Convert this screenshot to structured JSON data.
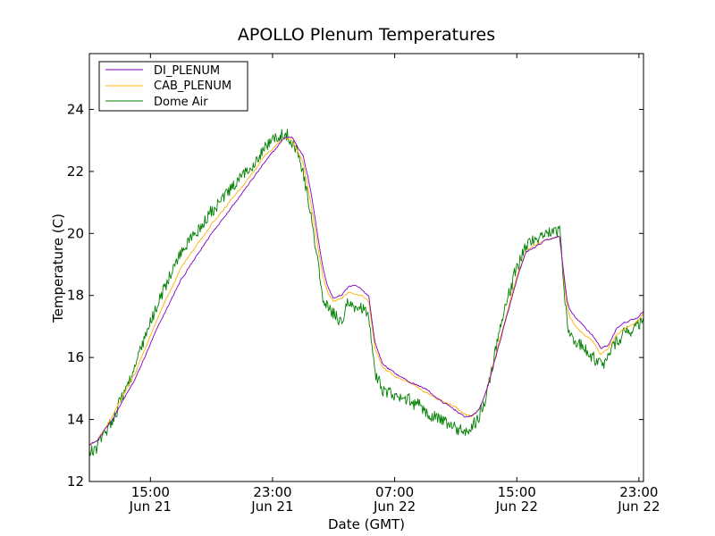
{
  "chart_data": {
    "type": "line",
    "title": "APOLLO Plenum Temperatures",
    "xlabel": "Date (GMT)",
    "ylabel": "Temperature (C)",
    "x_unit": "hours since Jun 21 11:00 GMT",
    "xlim": [
      0,
      36.3
    ],
    "ylim": [
      12,
      25.8
    ],
    "grid": false,
    "legend_position": "top-left",
    "y_ticks": [
      {
        "value": 12,
        "label": "12"
      },
      {
        "value": 14,
        "label": "14"
      },
      {
        "value": 16,
        "label": "16"
      },
      {
        "value": 18,
        "label": "18"
      },
      {
        "value": 20,
        "label": "20"
      },
      {
        "value": 22,
        "label": "22"
      },
      {
        "value": 24,
        "label": "24"
      }
    ],
    "x_ticks": [
      {
        "value": 4,
        "label_time": "15:00",
        "label_date": "Jun 21"
      },
      {
        "value": 12,
        "label_time": "23:00",
        "label_date": "Jun 21"
      },
      {
        "value": 20,
        "label_time": "07:00",
        "label_date": "Jun 22"
      },
      {
        "value": 28,
        "label_time": "15:00",
        "label_date": "Jun 22"
      },
      {
        "value": 36,
        "label_time": "23:00",
        "label_date": "Jun 22"
      }
    ],
    "series": [
      {
        "name": "DI_PLENUM",
        "color": "#8000c0",
        "noise": 0.05,
        "x": [
          0,
          0.5,
          1.5,
          3,
          4.5,
          6,
          8,
          10,
          11.5,
          12.8,
          13.3,
          14,
          14.5,
          15,
          15.3,
          15.6,
          16,
          16.5,
          17,
          17.5,
          17.8,
          18,
          18.3,
          18.7,
          19.2,
          20,
          21,
          22,
          23,
          24,
          24.5,
          25,
          25.5,
          26,
          27,
          28,
          28.6,
          29,
          30,
          30.8,
          31.3,
          31.5,
          32,
          33,
          33.5,
          34,
          34.5,
          35,
          36,
          36.3
        ],
        "y": [
          13.2,
          13.3,
          14.0,
          15.3,
          17.0,
          18.5,
          20.0,
          21.3,
          22.3,
          23.1,
          23.1,
          22.5,
          21.4,
          19.8,
          18.9,
          18.3,
          17.9,
          18.0,
          18.3,
          18.3,
          18.2,
          18.1,
          18.0,
          16.5,
          15.8,
          15.5,
          15.2,
          15.0,
          14.6,
          14.3,
          14.1,
          14.1,
          14.3,
          14.9,
          16.7,
          18.5,
          19.4,
          19.5,
          19.8,
          19.9,
          17.8,
          17.5,
          17.2,
          16.7,
          16.3,
          16.4,
          16.9,
          17.1,
          17.3,
          17.5
        ]
      },
      {
        "name": "CAB_PLENUM",
        "color": "#ffb000",
        "noise": 0.05,
        "x": [
          0,
          0.5,
          1.5,
          3,
          4.5,
          6,
          8,
          10,
          11.5,
          12.8,
          13.3,
          14,
          14.5,
          15,
          15.3,
          15.6,
          16,
          16.5,
          17,
          17.5,
          17.8,
          18,
          18.3,
          18.7,
          19.2,
          20,
          21,
          22,
          23,
          24,
          24.5,
          25,
          25.5,
          26,
          27,
          28,
          28.6,
          29,
          30,
          30.8,
          31.3,
          31.5,
          32,
          33,
          33.5,
          34,
          34.5,
          35,
          36,
          36.3
        ],
        "y": [
          13.2,
          13.3,
          14.1,
          15.5,
          17.3,
          18.9,
          20.3,
          21.5,
          22.5,
          23.1,
          23.0,
          22.3,
          21.0,
          19.5,
          18.6,
          18.1,
          17.8,
          17.9,
          18.1,
          18.0,
          18.0,
          17.9,
          17.8,
          16.3,
          15.7,
          15.4,
          15.2,
          14.9,
          14.6,
          14.4,
          14.2,
          14.1,
          14.3,
          14.9,
          16.8,
          18.6,
          19.4,
          19.6,
          19.8,
          19.9,
          17.6,
          17.3,
          16.9,
          16.5,
          16.1,
          16.3,
          16.7,
          16.9,
          17.2,
          17.4
        ]
      },
      {
        "name": "Dome Air",
        "color": "#007f00",
        "noise": 0.22,
        "x": [
          0,
          0.5,
          1.5,
          3,
          4.5,
          6,
          8,
          10,
          11.5,
          12.5,
          13.0,
          13.5,
          14,
          14.5,
          15,
          15.3,
          15.6,
          16,
          16.5,
          17,
          17.5,
          17.8,
          18,
          18.3,
          18.7,
          19.2,
          20,
          21,
          22,
          23,
          24,
          24.5,
          25,
          25.5,
          26,
          27,
          28,
          28.6,
          29,
          30,
          30.8,
          31.3,
          31.5,
          32,
          33,
          33.5,
          34,
          34.5,
          35,
          36,
          36.3
        ],
        "y": [
          12.9,
          13.1,
          14.0,
          15.7,
          17.8,
          19.4,
          20.7,
          21.8,
          22.8,
          23.2,
          23.2,
          22.8,
          22.0,
          20.6,
          18.9,
          17.9,
          17.6,
          17.4,
          17.2,
          17.8,
          17.6,
          17.6,
          17.5,
          17.3,
          15.5,
          15.0,
          14.7,
          14.6,
          14.3,
          14.0,
          13.7,
          13.6,
          13.7,
          14.1,
          14.8,
          17.2,
          18.9,
          19.6,
          19.8,
          20.0,
          20.1,
          17.0,
          16.6,
          16.5,
          16.0,
          15.7,
          16.0,
          16.5,
          16.8,
          17.0,
          17.3
        ]
      }
    ]
  }
}
